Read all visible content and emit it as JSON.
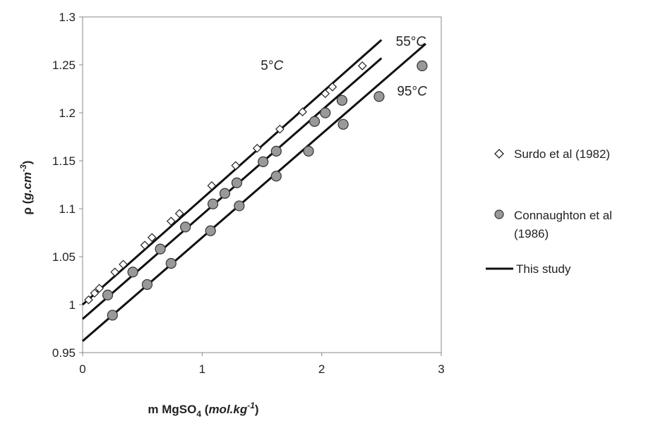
{
  "chart_data": {
    "type": "scatter",
    "xlabel": {
      "main": "m MgSO",
      "sub": "4",
      "unit_open": " (",
      "unit": "mol.kg",
      "unit_sup": "-1",
      "unit_close": ")"
    },
    "ylabel": {
      "main": "ρ (",
      "unit": "g.cm",
      "unit_sup": "-3",
      "unit_close": ")"
    },
    "xlim": [
      0,
      3
    ],
    "ylim": [
      0.95,
      1.3
    ],
    "xticks": [
      "0",
      "1",
      "2",
      "3"
    ],
    "yticks": [
      "0.95",
      "1",
      "1.05",
      "1.1",
      "1.15",
      "1.2",
      "1.25",
      "1.3"
    ],
    "grid": false,
    "legend_position": "right",
    "series": [
      {
        "name": "Surdo et al (1982)",
        "marker": "diamond-open",
        "points": [
          [
            0.05,
            1.005
          ],
          [
            0.1,
            1.012
          ],
          [
            0.14,
            1.017
          ],
          [
            0.27,
            1.034
          ],
          [
            0.34,
            1.042
          ],
          [
            0.52,
            1.062
          ],
          [
            0.58,
            1.07
          ],
          [
            0.74,
            1.087
          ],
          [
            0.81,
            1.095
          ],
          [
            1.08,
            1.124
          ],
          [
            1.28,
            1.145
          ],
          [
            1.46,
            1.163
          ],
          [
            1.65,
            1.183
          ],
          [
            1.84,
            1.201
          ],
          [
            2.03,
            1.22
          ],
          [
            2.09,
            1.227
          ],
          [
            2.34,
            1.249
          ]
        ]
      },
      {
        "name": "Connaughton et al (1986)",
        "marker": "circle-filled",
        "points": [
          [
            0.21,
            1.01
          ],
          [
            0.25,
            0.989
          ],
          [
            0.42,
            1.034
          ],
          [
            0.54,
            1.021
          ],
          [
            0.65,
            1.058
          ],
          [
            0.74,
            1.043
          ],
          [
            0.86,
            1.081
          ],
          [
            1.07,
            1.077
          ],
          [
            1.09,
            1.105
          ],
          [
            1.19,
            1.116
          ],
          [
            1.29,
            1.127
          ],
          [
            1.31,
            1.103
          ],
          [
            1.51,
            1.149
          ],
          [
            1.62,
            1.16
          ],
          [
            1.62,
            1.134
          ],
          [
            1.89,
            1.16
          ],
          [
            1.94,
            1.191
          ],
          [
            2.03,
            1.2
          ],
          [
            2.17,
            1.213
          ],
          [
            2.18,
            1.188
          ],
          [
            2.48,
            1.217
          ],
          [
            2.84,
            1.249
          ]
        ]
      },
      {
        "name": "This study",
        "marker": "line",
        "lines": [
          {
            "label": "5°C",
            "points": [
              [
                0,
                1.0
              ],
              [
                2.5,
                1.276
              ]
            ]
          },
          {
            "label": "55°C",
            "points": [
              [
                0,
                0.985
              ],
              [
                2.5,
                1.257
              ]
            ]
          },
          {
            "label": "95°C",
            "points": [
              [
                0,
                0.962
              ],
              [
                2.87,
                1.272
              ]
            ]
          }
        ]
      }
    ],
    "annotations": [
      {
        "text": "5°C",
        "x": 1.49,
        "y": 1.245
      },
      {
        "text": "55°C",
        "x": 2.62,
        "y": 1.27
      },
      {
        "text": "95°C",
        "x": 2.63,
        "y": 1.218
      }
    ]
  }
}
